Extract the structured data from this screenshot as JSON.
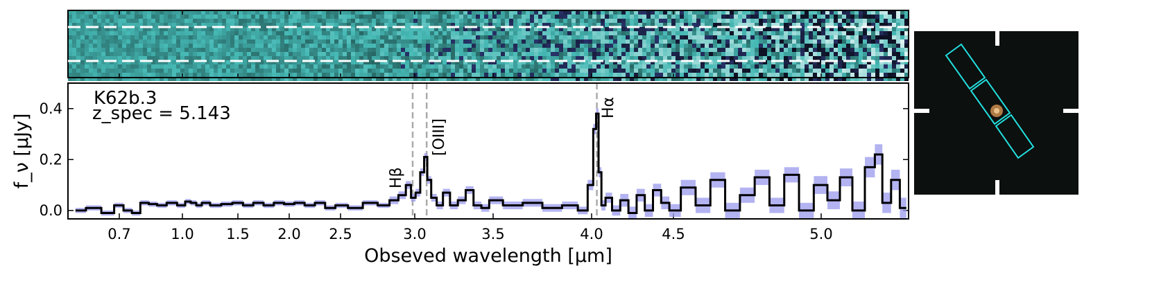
{
  "chart_data": {
    "type": "line",
    "title": "K62b.3",
    "subtitle": "z_spec = 5.143",
    "x_label": "Obseved wavelength [μm]",
    "y_label": "f_ν [μJy]",
    "xlim": [
      0.6,
      5.35
    ],
    "xticks": [
      0.7,
      {
        "value": 1,
        "label": "1.0"
      },
      1.5,
      {
        "value": 2,
        "label": "2.0"
      },
      2.5,
      {
        "value": 3,
        "label": "3.0"
      },
      3.5,
      {
        "value": 4,
        "label": "4.0"
      },
      4.5,
      {
        "value": 5,
        "label": "5.0"
      }
    ],
    "ylim": [
      -0.033,
      0.5
    ],
    "yticks": [
      {
        "value": 0,
        "label": "0.0"
      },
      0.2,
      0.4
    ],
    "lines": [
      {
        "x": 2.986,
        "label": "Hβ"
      },
      {
        "x": 3.076,
        "label": "[OIII]"
      },
      {
        "x": 4.032,
        "label": "Hα"
      }
    ],
    "x": [
      0.62,
      0.65,
      0.68,
      0.7,
      0.74,
      0.78,
      0.82,
      0.86,
      0.9,
      0.95,
      1.0,
      1.05,
      1.1,
      1.15,
      1.2,
      1.3,
      1.4,
      1.5,
      1.6,
      1.7,
      1.8,
      1.9,
      2.0,
      2.1,
      2.2,
      2.3,
      2.4,
      2.5,
      2.6,
      2.7,
      2.8,
      2.86,
      2.92,
      2.96,
      2.99,
      3.02,
      3.05,
      3.07,
      3.09,
      3.12,
      3.16,
      3.2,
      3.25,
      3.3,
      3.35,
      3.4,
      3.45,
      3.5,
      3.6,
      3.7,
      3.8,
      3.9,
      3.96,
      4.0,
      4.02,
      4.035,
      4.05,
      4.07,
      4.1,
      4.15,
      4.2,
      4.25,
      4.3,
      4.35,
      4.4,
      4.45,
      4.5,
      4.55,
      4.6,
      4.65,
      4.7,
      4.75,
      4.8,
      4.85,
      4.9,
      4.95,
      5.0,
      5.05,
      5.1,
      5.15,
      5.2,
      5.23,
      5.26,
      5.3,
      5.33
    ],
    "series": [
      {
        "color": "#000000",
        "values": [
          0.0,
          0.01,
          -0.01,
          0.02,
          0.0,
          -0.01,
          0.03,
          0.025,
          0.02,
          0.03,
          0.02,
          0.035,
          0.03,
          0.02,
          0.03,
          0.02,
          0.025,
          0.03,
          0.02,
          0.03,
          0.02,
          0.03,
          0.025,
          0.03,
          0.02,
          0.03,
          0.01,
          0.02,
          0.01,
          0.03,
          0.02,
          0.04,
          0.06,
          0.1,
          0.05,
          0.07,
          0.15,
          0.21,
          0.12,
          0.05,
          0.02,
          0.07,
          0.02,
          0.04,
          0.08,
          0.02,
          0.01,
          0.04,
          0.02,
          0.03,
          0.01,
          0.02,
          0.0,
          0.1,
          0.32,
          0.38,
          0.15,
          0.02,
          0.05,
          0.0,
          0.04,
          -0.01,
          0.06,
          0.0,
          0.08,
          0.03,
          0.0,
          0.09,
          0.02,
          0.12,
          0.0,
          0.06,
          0.13,
          0.02,
          0.14,
          0.0,
          0.1,
          0.04,
          0.13,
          0.0,
          0.17,
          0.22,
          0.03,
          0.12,
          0.01
        ],
        "error_color": "#9999ee",
        "errors": [
          0.01,
          0.01,
          0.01,
          0.01,
          0.01,
          0.01,
          0.01,
          0.01,
          0.01,
          0.01,
          0.01,
          0.01,
          0.01,
          0.01,
          0.01,
          0.01,
          0.01,
          0.01,
          0.01,
          0.01,
          0.01,
          0.01,
          0.01,
          0.01,
          0.01,
          0.01,
          0.01,
          0.01,
          0.01,
          0.01,
          0.01,
          0.015,
          0.015,
          0.015,
          0.015,
          0.015,
          0.015,
          0.015,
          0.015,
          0.015,
          0.015,
          0.015,
          0.015,
          0.015,
          0.015,
          0.015,
          0.015,
          0.015,
          0.015,
          0.015,
          0.015,
          0.015,
          0.015,
          0.02,
          0.02,
          0.02,
          0.02,
          0.02,
          0.02,
          0.02,
          0.025,
          0.025,
          0.025,
          0.025,
          0.025,
          0.025,
          0.025,
          0.03,
          0.03,
          0.03,
          0.03,
          0.03,
          0.03,
          0.03,
          0.03,
          0.03,
          0.035,
          0.035,
          0.035,
          0.035,
          0.04,
          0.04,
          0.04,
          0.04,
          0.04
        ]
      }
    ]
  }
}
